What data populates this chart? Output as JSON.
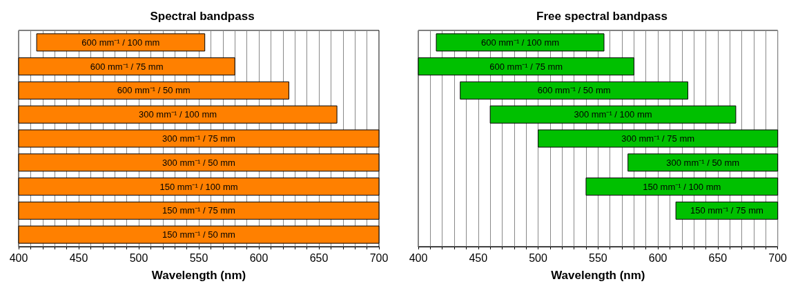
{
  "chart_data": [
    {
      "type": "bar",
      "orientation": "horizontal",
      "title": "Spectral bandpass",
      "xlabel": "Wavelength (nm)",
      "tick_labels": "x",
      "grid": "x",
      "legend": false,
      "color": "#ff8000",
      "categories": [
        "600 mm⁻¹ / 100 mm",
        "600 mm⁻¹ / 75 mm",
        "600 mm⁻¹ / 50 mm",
        "300 mm⁻¹ / 100 mm",
        "300 mm⁻¹ / 75 mm",
        "300 mm⁻¹ / 50 mm",
        "150 mm⁻¹ / 100 mm",
        "150 mm⁻¹ / 75 mm",
        "150 mm⁻¹ / 50 mm"
      ],
      "base": [
        415,
        400,
        400,
        400,
        400,
        400,
        400,
        400,
        400
      ],
      "values": [
        140,
        180,
        225,
        265,
        300,
        300,
        300,
        300,
        300
      ],
      "xlim": [
        400,
        700
      ],
      "xticks": [
        400,
        {
          "value": 410,
          "label": null
        },
        {
          "value": 420,
          "label": null
        },
        {
          "value": 430,
          "label": null
        },
        {
          "value": 440,
          "label": null
        },
        450,
        {
          "value": 460,
          "label": null
        },
        {
          "value": 470,
          "label": null
        },
        {
          "value": 480,
          "label": null
        },
        {
          "value": 490,
          "label": null
        },
        500,
        {
          "value": 510,
          "label": null
        },
        {
          "value": 520,
          "label": null
        },
        {
          "value": 530,
          "label": null
        },
        {
          "value": 540,
          "label": null
        },
        550,
        {
          "value": 560,
          "label": null
        },
        {
          "value": 570,
          "label": null
        },
        {
          "value": 580,
          "label": null
        },
        {
          "value": 590,
          "label": null
        },
        600,
        {
          "value": 610,
          "label": null
        },
        {
          "value": 620,
          "label": null
        },
        {
          "value": 630,
          "label": null
        },
        {
          "value": 640,
          "label": null
        },
        650,
        {
          "value": 660,
          "label": null
        },
        {
          "value": 670,
          "label": null
        },
        {
          "value": 680,
          "label": null
        },
        {
          "value": 690,
          "label": null
        },
        700
      ]
    },
    {
      "type": "bar",
      "orientation": "horizontal",
      "title": "Free spectral bandpass",
      "xlabel": "Wavelength (nm)",
      "tick_labels": "x",
      "grid": "x",
      "legend": false,
      "color": "#00c000",
      "categories": [
        "600 mm⁻¹ / 100 mm",
        "600 mm⁻¹ / 75 mm",
        "600 mm⁻¹ / 50 mm",
        "300 mm⁻¹ / 100 mm",
        "300 mm⁻¹ / 75 mm",
        "300 mm⁻¹ / 50 mm",
        "150 mm⁻¹ / 100 mm",
        "150 mm⁻¹ / 75 mm",
        null
      ],
      "base": [
        415,
        400,
        435,
        460,
        500,
        575,
        540,
        615,
        null
      ],
      "values": [
        140,
        180,
        190,
        205,
        200,
        125,
        160,
        85,
        null
      ],
      "xlim": [
        400,
        700
      ],
      "xticks": [
        400,
        {
          "value": 410,
          "label": null
        },
        {
          "value": 420,
          "label": null
        },
        {
          "value": 430,
          "label": null
        },
        {
          "value": 440,
          "label": null
        },
        450,
        {
          "value": 460,
          "label": null
        },
        {
          "value": 470,
          "label": null
        },
        {
          "value": 480,
          "label": null
        },
        {
          "value": 490,
          "label": null
        },
        500,
        {
          "value": 510,
          "label": null
        },
        {
          "value": 520,
          "label": null
        },
        {
          "value": 530,
          "label": null
        },
        {
          "value": 540,
          "label": null
        },
        550,
        {
          "value": 560,
          "label": null
        },
        {
          "value": 570,
          "label": null
        },
        {
          "value": 580,
          "label": null
        },
        {
          "value": 590,
          "label": null
        },
        600,
        {
          "value": 610,
          "label": null
        },
        {
          "value": 620,
          "label": null
        },
        {
          "value": 630,
          "label": null
        },
        {
          "value": 640,
          "label": null
        },
        650,
        {
          "value": 660,
          "label": null
        },
        {
          "value": 670,
          "label": null
        },
        {
          "value": 680,
          "label": null
        },
        {
          "value": 690,
          "label": null
        },
        700
      ]
    }
  ]
}
